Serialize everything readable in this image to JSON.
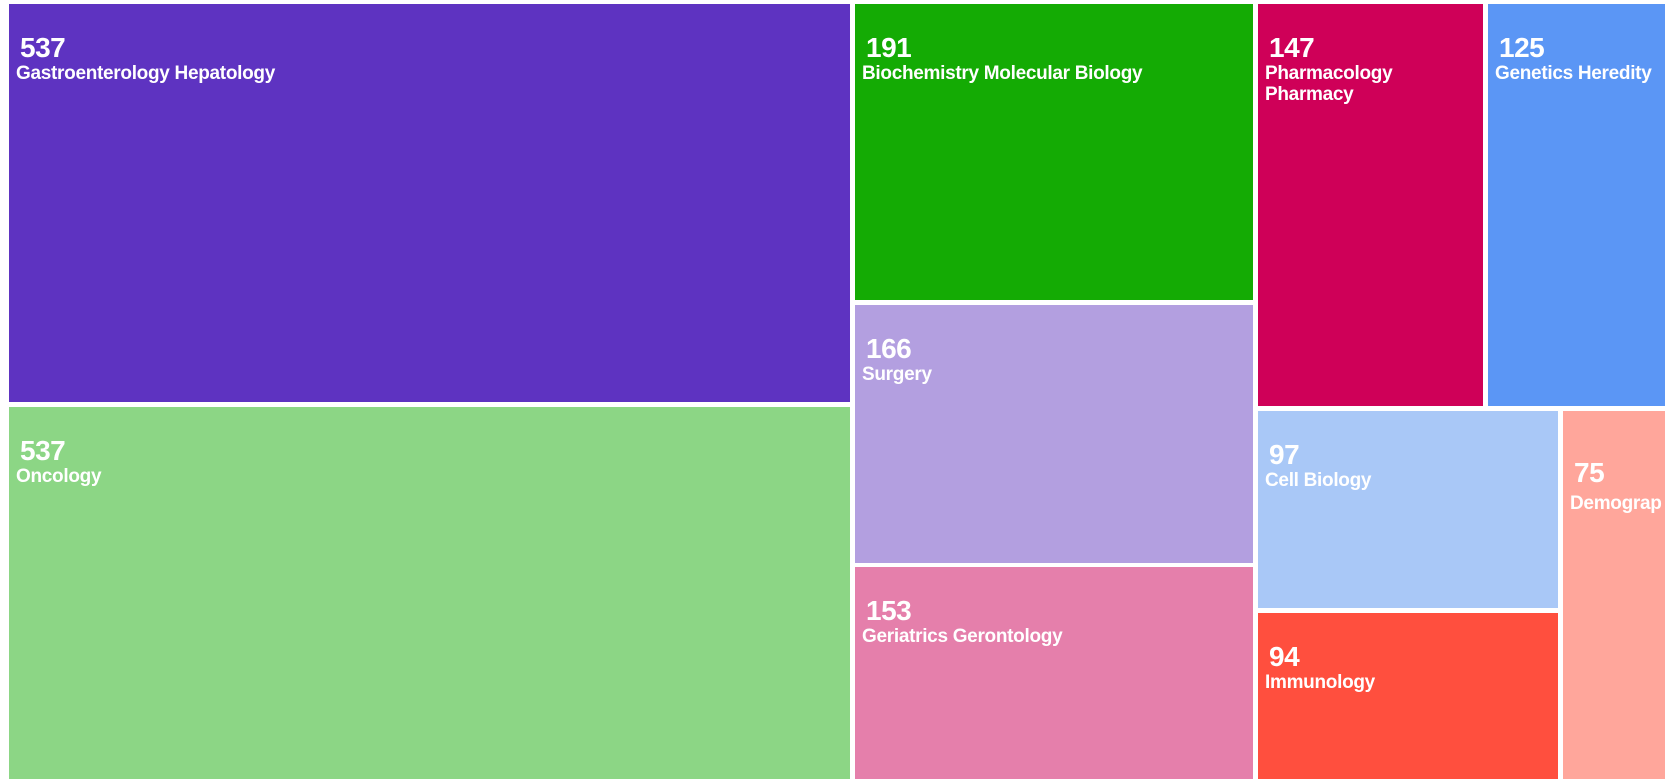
{
  "chart_data": {
    "type": "treemap",
    "title": "",
    "items": [
      {
        "label": "Gastroenterology Hepatology",
        "value": 537,
        "color": "#5e33c1"
      },
      {
        "label": "Oncology",
        "value": 537,
        "color": "#8cd685"
      },
      {
        "label": "Biochemistry Molecular Biology",
        "value": 191,
        "color": "#14ab04"
      },
      {
        "label": "Surgery",
        "value": 166,
        "color": "#b39fe0"
      },
      {
        "label": "Geriatrics Gerontology",
        "value": 153,
        "color": "#e57fab"
      },
      {
        "label": "Pharmacology\nPharmacy",
        "value": 147,
        "color": "#cf0058"
      },
      {
        "label": "Genetics Heredity",
        "value": 125,
        "color": "#5b96f5"
      },
      {
        "label": "Cell Biology",
        "value": 97,
        "color": "#a9c8f7"
      },
      {
        "label": "Immunology",
        "value": 94,
        "color": "#ff4f3e"
      },
      {
        "label": "Demograp",
        "value": 75,
        "color": "#ffa69b"
      }
    ]
  }
}
